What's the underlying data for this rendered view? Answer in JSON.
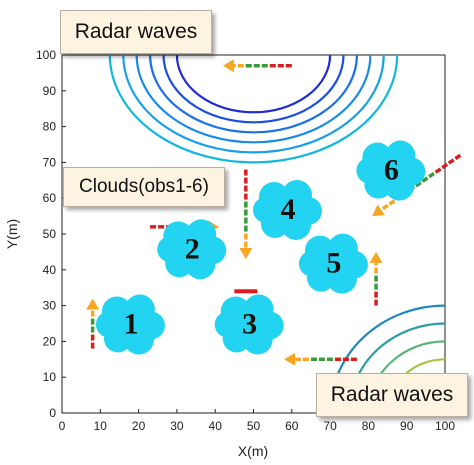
{
  "labels": {
    "radar_top": "Radar waves",
    "clouds": "Clouds(obs1-6)",
    "radar_bottom": "Radar waves"
  },
  "axes": {
    "xlabel": "X(m)",
    "ylabel": "Y(m)",
    "xlim": [
      0,
      100
    ],
    "ylim": [
      0,
      100
    ],
    "xticks": [
      "0",
      "10",
      "20",
      "30",
      "40",
      "50",
      "60",
      "70",
      "80",
      "90",
      "100"
    ],
    "yticks": [
      "0",
      "10",
      "20",
      "30",
      "40",
      "50",
      "60",
      "70",
      "80",
      "90",
      "100"
    ]
  },
  "clouds": [
    {
      "id": "1",
      "x": 18,
      "y": 25
    },
    {
      "id": "2",
      "x": 34,
      "y": 46
    },
    {
      "id": "3",
      "x": 49,
      "y": 25
    },
    {
      "id": "4",
      "x": 59,
      "y": 57
    },
    {
      "id": "5",
      "x": 71,
      "y": 42
    },
    {
      "id": "6",
      "x": 86,
      "y": 68
    }
  ],
  "arrows": [
    {
      "name": "arrow-obs1-up",
      "from": [
        8,
        18
      ],
      "to": [
        8,
        32
      ]
    },
    {
      "name": "arrow-obs2-right",
      "from": [
        23,
        52
      ],
      "to": [
        41,
        52
      ]
    },
    {
      "name": "arrow-obs4-down",
      "from": [
        48,
        68
      ],
      "to": [
        48,
        43
      ]
    },
    {
      "name": "arrow-obs5-up",
      "from": [
        82,
        30
      ],
      "to": [
        82,
        45
      ]
    },
    {
      "name": "arrow-obs6-downleft",
      "from": [
        104,
        72
      ],
      "to": [
        81,
        55
      ]
    },
    {
      "name": "arrow-radar-top-left",
      "from": [
        60,
        97
      ],
      "to": [
        42,
        97
      ]
    },
    {
      "name": "arrow-radar-bottom-left",
      "from": [
        77,
        15
      ],
      "to": [
        58,
        15
      ]
    }
  ],
  "red_bar": {
    "x": [
      45,
      51
    ],
    "y": 34
  },
  "radar_top_arcs": {
    "center": [
      50,
      100
    ],
    "r": [
      20,
      23.5,
      27,
      30.5,
      34,
      37.5
    ],
    "colors": [
      "#1e2bd6",
      "#1a4fe0",
      "#1a70e6",
      "#1a8ae8",
      "#1aa0e6",
      "#12b8dc"
    ]
  },
  "radar_bottom_arcs": {
    "center": [
      100,
      0
    ],
    "r": [
      10,
      15,
      20,
      25,
      30
    ],
    "colors": [
      "#c8c232",
      "#a2c64a",
      "#5ab47a",
      "#2aa0a6",
      "#1f8ab8"
    ]
  },
  "colors": {
    "cloud_fill": "#22d4f1",
    "arrow_head": "#f7a623",
    "arrow_green": "#3a9a3a",
    "arrow_red": "#d62020",
    "red_bar": "#e01a1a"
  }
}
